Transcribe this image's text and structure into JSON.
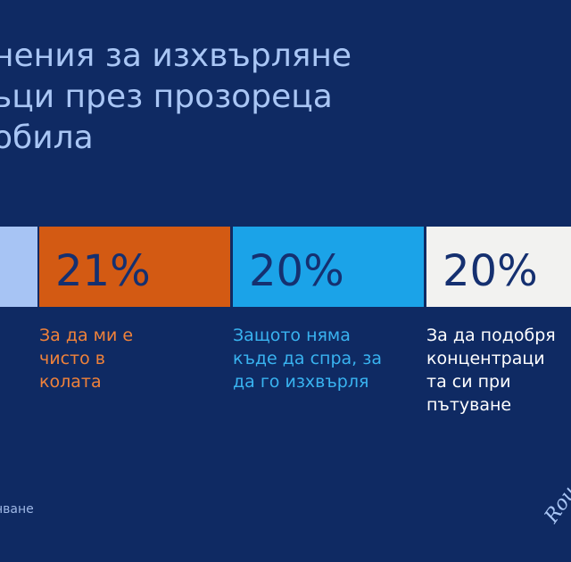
{
  "title_lines": [
    "нения за изхвърляне",
    "ьци през прозореца",
    "обила"
  ],
  "footer_text": "нване",
  "logo_text": "Roua",
  "chart_data": {
    "type": "bar",
    "orientation": "stacked-horizontal",
    "categories": [
      "",
      "За да ми е чисто в колата",
      "Защото няма къде да спра, за да го изхвърля",
      "За да подобря концентрацията си при пътуване"
    ],
    "value_labels": [
      "",
      "21%",
      "20%",
      "20%"
    ],
    "values": [
      null,
      21,
      20,
      20
    ],
    "colors": [
      "#a7c4f4",
      "#d35a13",
      "#1ba3e8",
      "#f2f2f0"
    ],
    "label_colors": [
      "#a7c4f4",
      "#f0823a",
      "#39b3f0",
      "#ffffff"
    ],
    "value_text_color": "#153070",
    "category_lines": [
      [],
      [
        "За да ми е",
        "чисто в",
        "колата"
      ],
      [
        "Защото няма",
        "къде да спра, за",
        "да го изхвърля"
      ],
      [
        "За да подобря",
        "концентраци",
        "та си при",
        "пътуване"
      ]
    ]
  }
}
